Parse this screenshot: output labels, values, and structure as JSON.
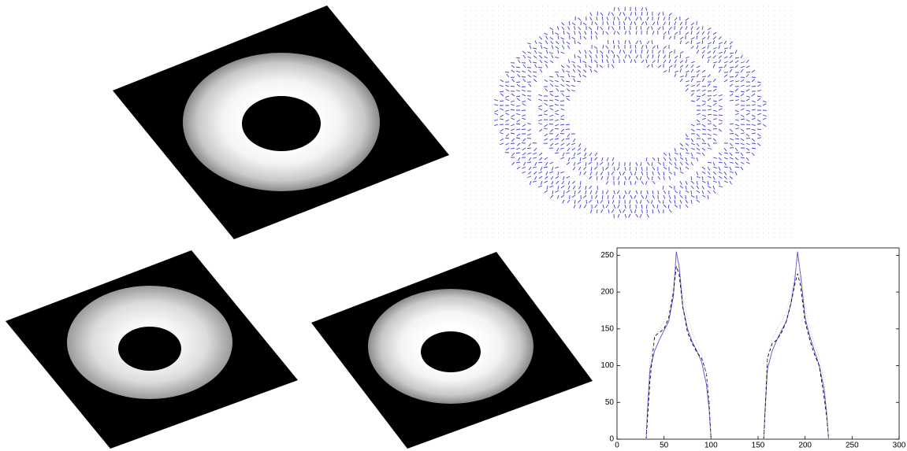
{
  "chart_data": {
    "type": "line",
    "x": [
      31,
      32,
      35,
      40,
      45,
      50,
      55,
      60,
      63,
      66,
      70,
      75,
      80,
      85,
      90,
      95,
      98,
      100,
      128,
      156,
      157,
      160,
      165,
      170,
      175,
      180,
      185,
      189,
      192,
      195,
      200,
      205,
      210,
      215,
      220,
      223,
      225
    ],
    "series": [
      {
        "color": "#5050e0",
        "dash": "",
        "values": [
          0,
          30,
          95,
          120,
          135,
          148,
          160,
          195,
          255,
          235,
          180,
          150,
          132,
          120,
          105,
          75,
          40,
          0,
          null,
          0,
          30,
          95,
          120,
          135,
          148,
          160,
          185,
          215,
          255,
          225,
          165,
          140,
          120,
          100,
          70,
          35,
          0
        ]
      },
      {
        "color": "#000000",
        "dash": "4 3",
        "values": [
          0,
          20,
          80,
          140,
          145,
          150,
          165,
          200,
          235,
          225,
          180,
          145,
          130,
          118,
          110,
          90,
          50,
          0,
          null,
          0,
          25,
          110,
          130,
          135,
          145,
          160,
          185,
          210,
          225,
          210,
          160,
          135,
          115,
          100,
          60,
          30,
          0
        ]
      },
      {
        "color": "#e8a8a8",
        "dash": "1 2",
        "values": [
          0,
          40,
          110,
          135,
          150,
          160,
          175,
          210,
          245,
          240,
          195,
          165,
          145,
          130,
          115,
          90,
          50,
          0,
          null,
          0,
          40,
          115,
          135,
          150,
          160,
          172,
          195,
          225,
          245,
          230,
          180,
          150,
          130,
          110,
          80,
          40,
          0
        ]
      }
    ],
    "xlim": [
      0,
      300
    ],
    "xticks": [
      0,
      50,
      100,
      150,
      200,
      250,
      300
    ],
    "ylim": [
      0,
      260
    ],
    "yticks": [
      0,
      50,
      100,
      150,
      200,
      250
    ]
  }
}
